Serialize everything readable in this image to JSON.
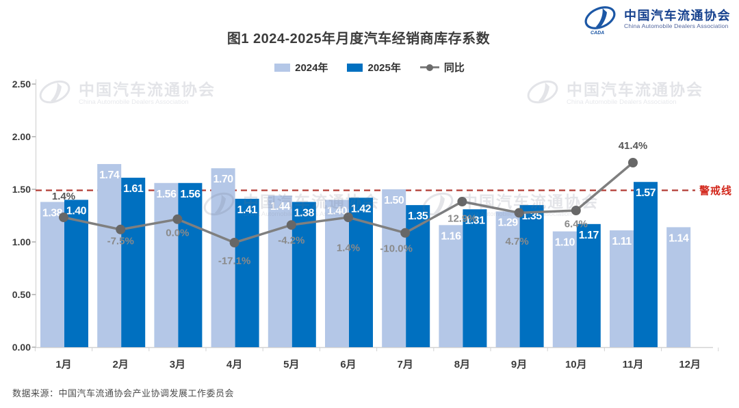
{
  "logo": {
    "name_cn": "中国汽车流通协会",
    "name_en": "China Automobile Dealers Association",
    "abbr": "CADA"
  },
  "title": "图1  2024-2025年月度汽车经销商库存系数",
  "watermark": {
    "name_cn": "中国汽车流通协会",
    "name_en": "China Automobile Dealers Association"
  },
  "source": "数据来源：中国汽车流通协会产业协调发展工作委员会",
  "chart_data": {
    "type": "bar",
    "subtype": "grouped bars with year-over-year line overlay",
    "title": "图1  2024-2025年月度汽车经销商库存系数",
    "categories": [
      "1月",
      "2月",
      "3月",
      "4月",
      "5月",
      "6月",
      "7月",
      "8月",
      "9月",
      "10月",
      "11月",
      "12月"
    ],
    "series": [
      {
        "name": "2024年",
        "color": "#b4c7e7",
        "values": [
          1.38,
          1.74,
          1.56,
          1.7,
          1.44,
          1.4,
          1.5,
          1.16,
          1.29,
          1.1,
          1.11,
          1.14
        ]
      },
      {
        "name": "2025年",
        "color": "#0070c0",
        "values": [
          1.4,
          1.61,
          1.56,
          1.41,
          1.38,
          1.42,
          1.35,
          1.31,
          1.35,
          1.17,
          1.57
        ]
      }
    ],
    "yoy_line": {
      "name": "同比",
      "color": "#7f7f7f",
      "unit": "%",
      "values_pct": [
        1.4,
        -7.5,
        0.0,
        -17.1,
        -4.2,
        1.4,
        -10.0,
        12.9,
        4.7,
        6.4,
        41.4
      ]
    },
    "ylim": [
      0,
      2.5
    ],
    "yticks": [
      "0.00",
      "0.50",
      "1.00",
      "1.50",
      "2.00",
      "2.50"
    ],
    "warning_line": {
      "value": 1.5,
      "label": "警戒线",
      "color": "#c02a20"
    },
    "legend_position": "top",
    "grid": false
  }
}
